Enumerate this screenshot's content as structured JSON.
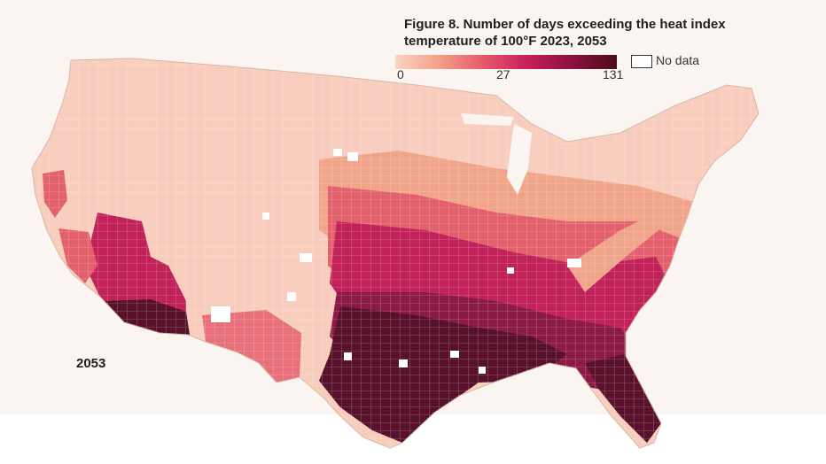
{
  "figure": {
    "title": "Figure 8. Number of days exceeding the heat index temperature of 100°F 2023, 2053",
    "year_label": "2053"
  },
  "legend": {
    "min_label": "0",
    "mid_label": "27",
    "max_label": "131",
    "no_data_label": "No data",
    "colors": [
      "#fbd3c4",
      "#f2a085",
      "#e5586b",
      "#c61f5a",
      "#8a1040",
      "#4e0c1c"
    ]
  },
  "colors": {
    "background": "#fbf5f2",
    "low": "#f8cdbd",
    "low_mid": "#f09a80",
    "mid": "#e3566a",
    "high": "#c01f57",
    "very_high": "#8a1a45",
    "extreme": "#55102a",
    "no_data": "#ffffff",
    "county_border": "#ffffff"
  }
}
